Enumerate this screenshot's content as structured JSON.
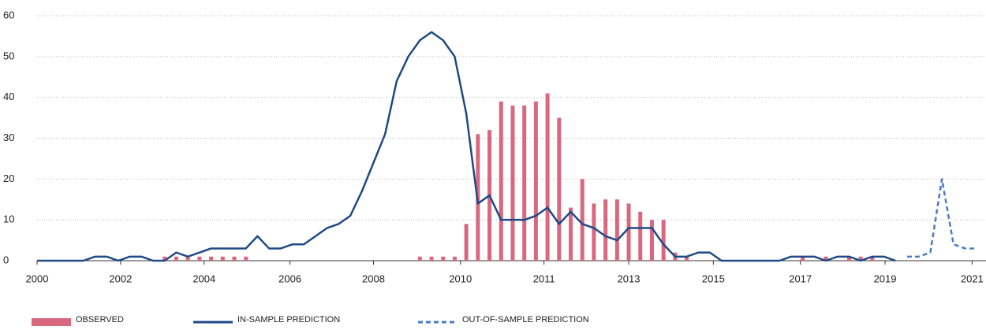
{
  "chart_data": {
    "type": "bar_line",
    "x": [
      0,
      1,
      2,
      3,
      4,
      5,
      6,
      7,
      8,
      9,
      10,
      11,
      12,
      13,
      14,
      15,
      16,
      17,
      18,
      19,
      20,
      21,
      22,
      23,
      24,
      25,
      26,
      27,
      28,
      29,
      30,
      31,
      32,
      33,
      34,
      35,
      36,
      37,
      38,
      39,
      40,
      41,
      42,
      43,
      44,
      45,
      46,
      47,
      48,
      49,
      50,
      51,
      52,
      53,
      54,
      55,
      56,
      57,
      58,
      59,
      60,
      61,
      62,
      63,
      64,
      65,
      66,
      67,
      68,
      69,
      70,
      71,
      72,
      73,
      74,
      75,
      76,
      77,
      78,
      79,
      80,
      81
    ],
    "xlim": [
      0,
      81.8
    ],
    "xticks": [
      {
        "value": 0,
        "label": "2000"
      },
      {
        "value": 7.2,
        "label": "2002"
      },
      {
        "value": 14.4,
        "label": "2004"
      },
      {
        "value": 21.8,
        "label": "2006"
      },
      {
        "value": 29,
        "label": "2008"
      },
      {
        "value": 36.5,
        "label": "2010"
      },
      {
        "value": 43.7,
        "label": "2011"
      },
      {
        "value": 51,
        "label": "2013"
      },
      {
        "value": 58.3,
        "label": "2015"
      },
      {
        "value": 65.8,
        "label": "2017"
      },
      {
        "value": 73.1,
        "label": "2019"
      },
      {
        "value": 80.6,
        "label": "2021"
      }
    ],
    "ylim": [
      0,
      60
    ],
    "yticks": [
      0,
      10,
      20,
      30,
      40,
      50,
      60
    ],
    "grid": true,
    "legend": "bottom",
    "series": [
      {
        "name": "OBSERVED",
        "kind": "bar",
        "color": "#d9677d",
        "values": [
          0,
          0,
          0,
          0,
          0,
          0,
          0,
          0,
          0,
          0,
          0,
          1,
          1,
          1,
          1,
          1,
          1,
          1,
          1,
          0,
          0,
          0,
          0,
          0,
          0,
          0,
          0,
          0,
          0,
          0,
          0,
          0,
          0,
          1,
          1,
          1,
          1,
          9,
          31,
          32,
          39,
          38,
          38,
          39,
          41,
          35,
          13,
          20,
          14,
          15,
          15,
          14,
          12,
          10,
          10,
          2,
          1,
          0,
          0,
          0,
          0,
          0,
          0,
          0,
          0,
          0,
          1,
          0,
          1,
          0,
          1,
          1,
          1,
          0,
          0,
          0,
          0,
          0,
          0,
          0,
          0,
          0
        ]
      },
      {
        "name": "IN-SAMPLE PREDICTION",
        "kind": "line",
        "color": "#1f4a87",
        "values": [
          0,
          0,
          0,
          0,
          0,
          1,
          1,
          0,
          1,
          1,
          0,
          0,
          2,
          1,
          2,
          3,
          3,
          3,
          3,
          6,
          3,
          3,
          4,
          4,
          6,
          8,
          9,
          11,
          17,
          24,
          31,
          44,
          50,
          54,
          56,
          54,
          50,
          36,
          14,
          16,
          10,
          10,
          10,
          11,
          13,
          9,
          12,
          9,
          8,
          6,
          5,
          8,
          8,
          8,
          4,
          1,
          1,
          2,
          2,
          0,
          0,
          0,
          0,
          0,
          0,
          1,
          1,
          1,
          0,
          1,
          1,
          0,
          1,
          1,
          0,
          null,
          null,
          null,
          null,
          null,
          null,
          null
        ]
      },
      {
        "name": "OUT-OF-SAMPLE PREDICTION",
        "kind": "dashed",
        "color": "#4a7cc0",
        "values": [
          null,
          null,
          null,
          null,
          null,
          null,
          null,
          null,
          null,
          null,
          null,
          null,
          null,
          null,
          null,
          null,
          null,
          null,
          null,
          null,
          null,
          null,
          null,
          null,
          null,
          null,
          null,
          null,
          null,
          null,
          null,
          null,
          null,
          null,
          null,
          null,
          null,
          null,
          null,
          null,
          null,
          null,
          null,
          null,
          null,
          null,
          null,
          null,
          null,
          null,
          null,
          null,
          null,
          null,
          null,
          null,
          null,
          null,
          null,
          null,
          null,
          null,
          null,
          null,
          null,
          null,
          null,
          null,
          null,
          null,
          null,
          null,
          null,
          null,
          null,
          1,
          1,
          2,
          20,
          4,
          3,
          3
        ]
      }
    ]
  }
}
